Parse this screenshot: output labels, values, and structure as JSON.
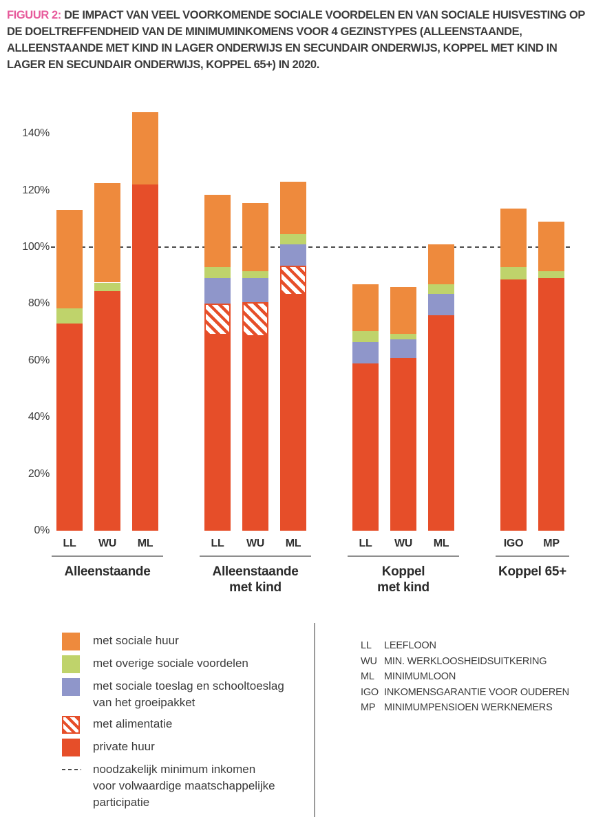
{
  "figure": {
    "label": "FIGUUR 2:",
    "title": "DE IMPACT VAN VEEL VOORKOMENDE SOCIALE VOORDELEN EN VAN SOCIALE HUISVESTING OP DE DOELTREFFENDHEID VAN DE MINIMUMINKOMENS VOOR 4 GEZINSTYPES (ALLEENSTAANDE, ALLEENSTAANDE MET KIND IN LAGER ONDERWIJS EN SECUNDAIR ONDERWIJS, KOPPEL MET KIND IN LAGER EN SECUNDAIR ONDERWIJS, KOPPEL 65+) IN 2020."
  },
  "colors": {
    "met_sociale_huur": "#ee8a3d",
    "met_overige": "#bfd36b",
    "met_toeslag": "#8f96ca",
    "met_alimentatie": "#e64e29",
    "private_huur": "#e64e29",
    "reference_line": "#4a4a4a",
    "figure_label_pink": "#e75a9b",
    "text": "#3b3b3b"
  },
  "chart_data": {
    "type": "bar",
    "subtype": "stacked",
    "unit": "%",
    "ylim": [
      0,
      150
    ],
    "yticks": [
      0,
      20,
      40,
      60,
      80,
      100,
      120,
      140
    ],
    "ytick_labels": [
      "0%",
      "20%",
      "40%",
      "60%",
      "80%",
      "100%",
      "120%",
      "140%"
    ],
    "grid": false,
    "reference_line": {
      "value": 100,
      "style": "dashed",
      "label": "noodzakelijk minimum inkomen voor volwaardige maatschappelijke participatie"
    },
    "segment_order": [
      "private_huur",
      "met_alimentatie",
      "met_toeslag",
      "met_overige",
      "met_sociale_huur"
    ],
    "segment_labels": {
      "private_huur": "private huur",
      "met_alimentatie": "met alimentatie",
      "met_toeslag": "met sociale toeslag en schooltoeslag van het groeipakket",
      "met_overige": "met overige sociale voordelen",
      "met_sociale_huur": "met sociale huur"
    },
    "groups": [
      {
        "label_lines": [
          "Alleenstaande"
        ],
        "bars": [
          {
            "label": "LL",
            "total": 113,
            "segments": {
              "private_huur": 73,
              "met_alimentatie": 0,
              "met_toeslag": 0,
              "met_overige": 5.5,
              "met_sociale_huur": 34.5
            }
          },
          {
            "label": "WU",
            "total": 122.5,
            "segments": {
              "private_huur": 84.5,
              "met_alimentatie": 0,
              "met_toeslag": 0,
              "met_overige": 3,
              "met_sociale_huur": 35
            }
          },
          {
            "label": "ML",
            "total": 147.5,
            "segments": {
              "private_huur": 122,
              "met_alimentatie": 0,
              "met_toeslag": 0,
              "met_overige": 0,
              "met_sociale_huur": 25.5
            }
          }
        ]
      },
      {
        "label_lines": [
          "Alleenstaande",
          "met kind"
        ],
        "bars": [
          {
            "label": "LL",
            "total": 118.5,
            "segments": {
              "private_huur": 69,
              "met_alimentatie": 11,
              "met_toeslag": 9,
              "met_overige": 4,
              "met_sociale_huur": 25.5
            }
          },
          {
            "label": "WU",
            "total": 115.5,
            "segments": {
              "private_huur": 68.5,
              "met_alimentatie": 12,
              "met_toeslag": 8.5,
              "met_overige": 2.5,
              "met_sociale_huur": 24
            }
          },
          {
            "label": "ML",
            "total": 123,
            "segments": {
              "private_huur": 83,
              "met_alimentatie": 10.5,
              "met_toeslag": 7.5,
              "met_overige": 3.5,
              "met_sociale_huur": 18.5
            }
          }
        ]
      },
      {
        "label_lines": [
          "Koppel",
          "met kind"
        ],
        "bars": [
          {
            "label": "LL",
            "total": 87,
            "segments": {
              "private_huur": 59,
              "met_alimentatie": 0,
              "met_toeslag": 7.5,
              "met_overige": 4,
              "met_sociale_huur": 16.5
            }
          },
          {
            "label": "WU",
            "total": 86,
            "segments": {
              "private_huur": 61,
              "met_alimentatie": 0,
              "met_toeslag": 6.5,
              "met_overige": 2,
              "met_sociale_huur": 16.5
            }
          },
          {
            "label": "ML",
            "total": 101,
            "segments": {
              "private_huur": 76,
              "met_alimentatie": 0,
              "met_toeslag": 7.5,
              "met_overige": 3.5,
              "met_sociale_huur": 14
            }
          }
        ]
      },
      {
        "label_lines": [
          "Koppel 65+"
        ],
        "bars": [
          {
            "label": "IGO",
            "total": 113.5,
            "segments": {
              "private_huur": 88.5,
              "met_alimentatie": 0,
              "met_toeslag": 0,
              "met_overige": 4.5,
              "met_sociale_huur": 20.5
            }
          },
          {
            "label": "MP",
            "total": 109,
            "segments": {
              "private_huur": 89,
              "met_alimentatie": 0,
              "met_toeslag": 0,
              "met_overige": 2.5,
              "met_sociale_huur": 17.5
            }
          }
        ]
      }
    ]
  },
  "legend": {
    "items": [
      {
        "key": "met_sociale_huur",
        "swatch": "solid",
        "label_lines": [
          "met sociale huur"
        ]
      },
      {
        "key": "met_overige",
        "swatch": "solid",
        "label_lines": [
          "met overige sociale voordelen"
        ]
      },
      {
        "key": "met_toeslag",
        "swatch": "solid",
        "label_lines": [
          "met sociale toeslag en schooltoeslag",
          "van het groeipakket"
        ]
      },
      {
        "key": "met_alimentatie",
        "swatch": "hatch",
        "label_lines": [
          "met alimentatie"
        ]
      },
      {
        "key": "private_huur",
        "swatch": "solid",
        "label_lines": [
          "private huur"
        ]
      },
      {
        "key": "reference_line",
        "swatch": "dash",
        "label_lines": [
          "noodzakelijk minimum inkomen",
          "voor volwaardige maatschappelijke",
          "participatie"
        ]
      }
    ],
    "abbreviations": [
      {
        "abbr": "LL",
        "label": "LEEFLOON"
      },
      {
        "abbr": "WU",
        "label": "MIN. WERKLOOSHEIDSUITKERING"
      },
      {
        "abbr": "ML",
        "label": "MINIMUMLOON"
      },
      {
        "abbr": "IGO",
        "label": "INKOMENSGARANTIE VOOR OUDEREN"
      },
      {
        "abbr": "MP",
        "label": "MINIMUMPENSIOEN WERKNEMERS"
      }
    ]
  }
}
